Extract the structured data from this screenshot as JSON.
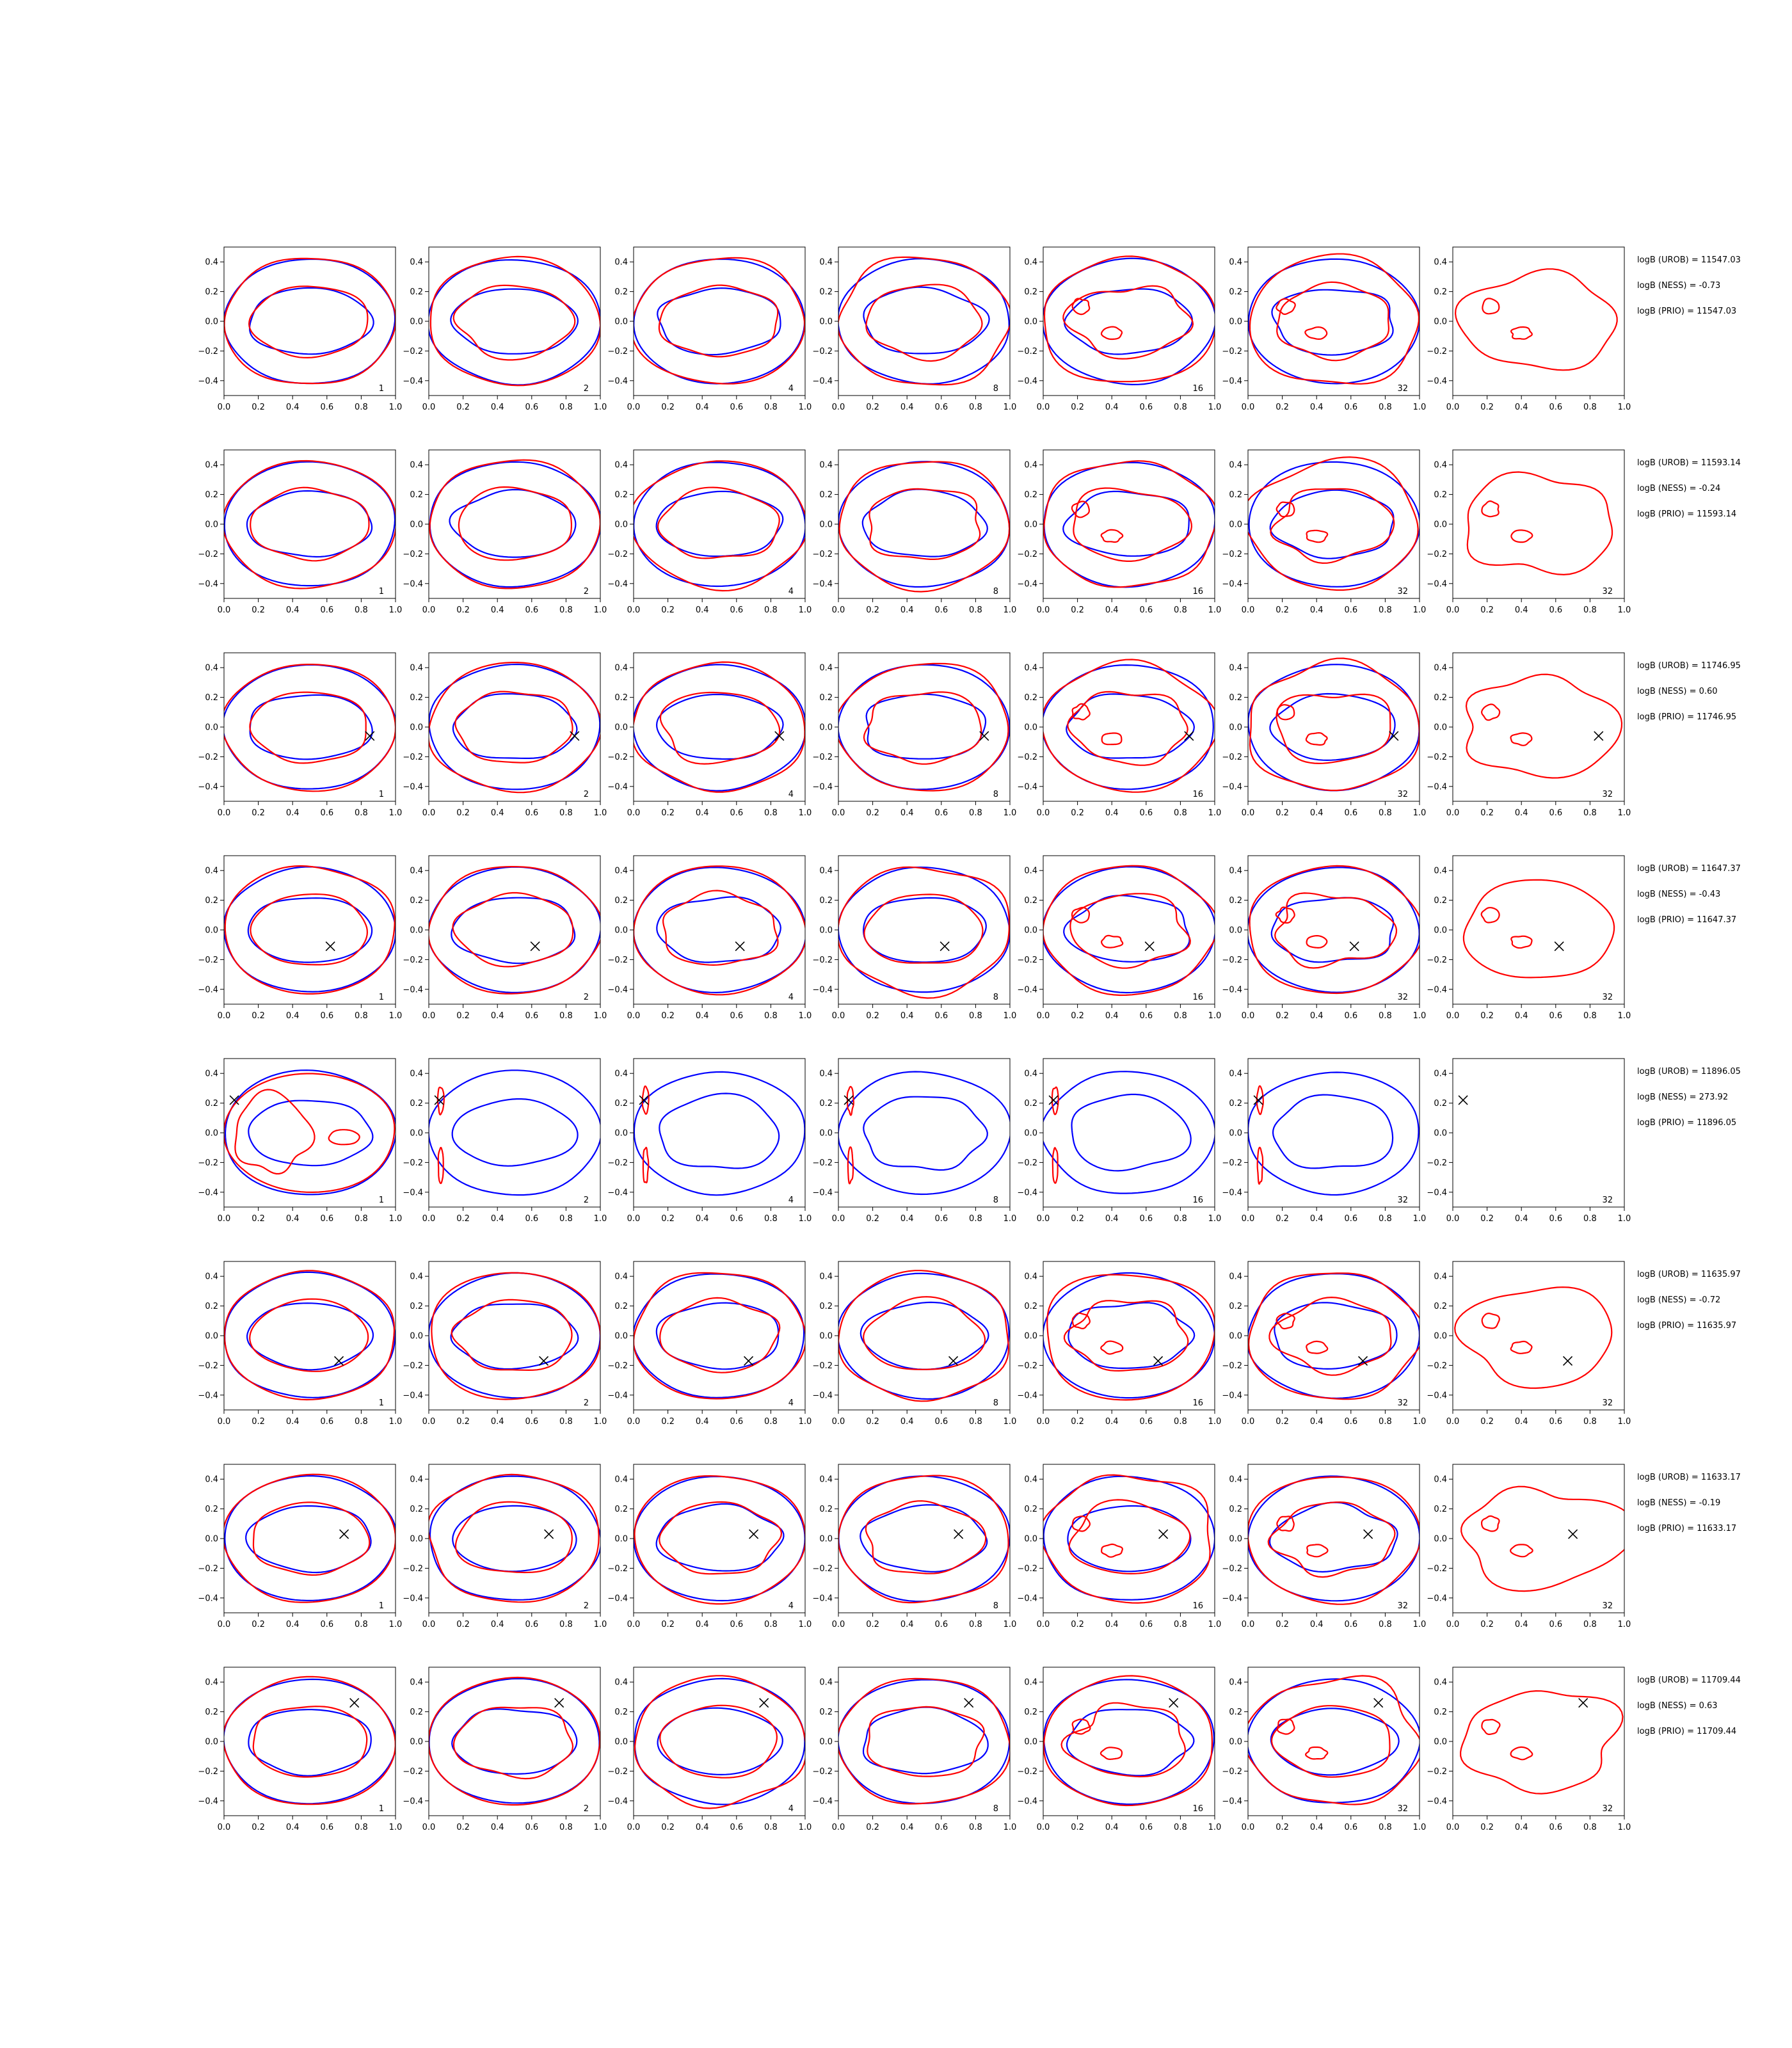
{
  "chart_data": {
    "type": "contour-grid",
    "grid_on": false,
    "colors": {
      "series_blue": "#0000ff",
      "series_red": "#ff0000",
      "marker": "#000000"
    },
    "xlim": [
      0.0,
      1.0
    ],
    "ylim": [
      -0.5,
      0.5
    ],
    "x_ticks": [
      0.0,
      0.2,
      0.4,
      0.6,
      0.8,
      1.0
    ],
    "x_tick_labels": [
      "0.0",
      "0.2",
      "0.4",
      "0.6",
      "0.8",
      "1.0"
    ],
    "y_ticks": [
      -0.4,
      -0.2,
      0.0,
      0.2,
      0.4
    ],
    "y_tick_labels": [
      "−0.4",
      "−0.2",
      "0.0",
      "0.2",
      "0.4"
    ],
    "panel_labels": [
      "1",
      "2",
      "4",
      "8",
      "16",
      "32",
      "32"
    ],
    "rows": [
      {
        "marker": null,
        "stats": [
          "logB (UROB) = 11547.03",
          "logB (NESS) = -0.73",
          "logB (PRIO) = 11547.03"
        ],
        "show_label_last": false,
        "last_blank": false,
        "lobe": [
          0,
          0,
          0,
          0
        ]
      },
      {
        "marker": null,
        "stats": [
          "logB (UROB) = 11593.14",
          "logB (NESS) = -0.24",
          "logB (PRIO) = 11593.14"
        ],
        "show_label_last": true,
        "last_blank": false,
        "lobe": [
          0,
          0,
          0,
          0
        ]
      },
      {
        "marker": [
          0.85,
          -0.06
        ],
        "stats": [
          "logB (UROB) = 11746.95",
          "logB (NESS) = 0.60",
          "logB (PRIO) = 11746.95"
        ],
        "show_label_last": true,
        "last_blank": false,
        "lobe": [
          0.85,
          -0.06,
          0.1,
          0.14
        ]
      },
      {
        "marker": [
          0.62,
          -0.11
        ],
        "stats": [
          "logB (UROB) = 11647.37",
          "logB (NESS) = -0.43",
          "logB (PRIO) = 11647.37"
        ],
        "show_label_last": true,
        "last_blank": false,
        "lobe": [
          0,
          0,
          0,
          0
        ]
      },
      {
        "marker": [
          0.06,
          0.22
        ],
        "stats": [
          "logB (UROB) = 11896.05",
          "logB (NESS) = 273.92",
          "logB (PRIO) = 11896.05"
        ],
        "show_label_last": true,
        "last_blank": true,
        "lobe": [
          0,
          0,
          0,
          0
        ]
      },
      {
        "marker": [
          0.67,
          -0.17
        ],
        "stats": [
          "logB (UROB) = 11635.97",
          "logB (NESS) = -0.72",
          "logB (PRIO) = 11635.97"
        ],
        "show_label_last": true,
        "last_blank": false,
        "lobe": [
          0,
          0,
          0,
          0
        ]
      },
      {
        "marker": [
          0.7,
          0.03
        ],
        "stats": [
          "logB (UROB) = 11633.17",
          "logB (NESS) = -0.19",
          "logB (PRIO) = 11633.17"
        ],
        "show_label_last": true,
        "last_blank": false,
        "lobe": [
          0.7,
          0.03,
          0.22,
          0.22
        ]
      },
      {
        "marker": [
          0.76,
          0.26
        ],
        "stats": [
          "logB (UROB) = 11709.44",
          "logB (NESS) = 0.63",
          "logB (PRIO) = 11709.44"
        ],
        "show_label_last": true,
        "last_blank": false,
        "lobe": [
          0.76,
          0.26,
          0.1,
          0.1
        ]
      }
    ]
  }
}
